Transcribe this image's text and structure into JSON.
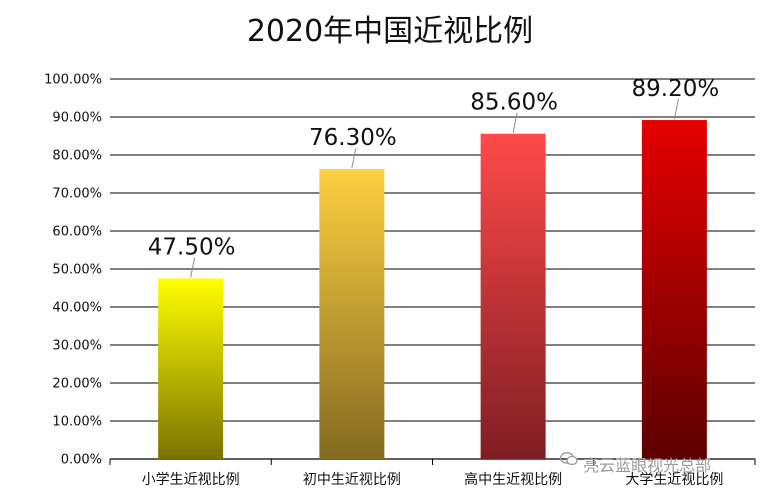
{
  "chart_data": {
    "type": "bar",
    "title": "2020年中国近视比例",
    "categories": [
      "小学生近视比例",
      "初中生近视比例",
      "高中生近视比例",
      "大学生近视比例"
    ],
    "values": [
      47.5,
      76.3,
      85.6,
      89.2
    ],
    "data_labels": [
      "47.50%",
      "76.30%",
      "85.60%",
      "89.20%"
    ],
    "ylim": [
      0,
      100
    ],
    "yticks": [
      0,
      10,
      20,
      30,
      40,
      50,
      60,
      70,
      80,
      90,
      100
    ],
    "ytick_labels": [
      "0.00%",
      "10.00%",
      "20.00%",
      "30.00%",
      "40.00%",
      "50.00%",
      "60.00%",
      "70.00%",
      "80.00%",
      "90.00%",
      "100.00%"
    ],
    "grid": true,
    "bar_gradients": [
      {
        "top": "#ffff00",
        "bottom": "#7a7300"
      },
      {
        "top": "#fdd040",
        "bottom": "#846a22"
      },
      {
        "top": "#ff4a4a",
        "bottom": "#7e1e22"
      },
      {
        "top": "#e60000",
        "bottom": "#5c0000"
      }
    ]
  },
  "watermark": {
    "icon": "wechat-icon",
    "text": "亮云蓝眼视光总部"
  }
}
